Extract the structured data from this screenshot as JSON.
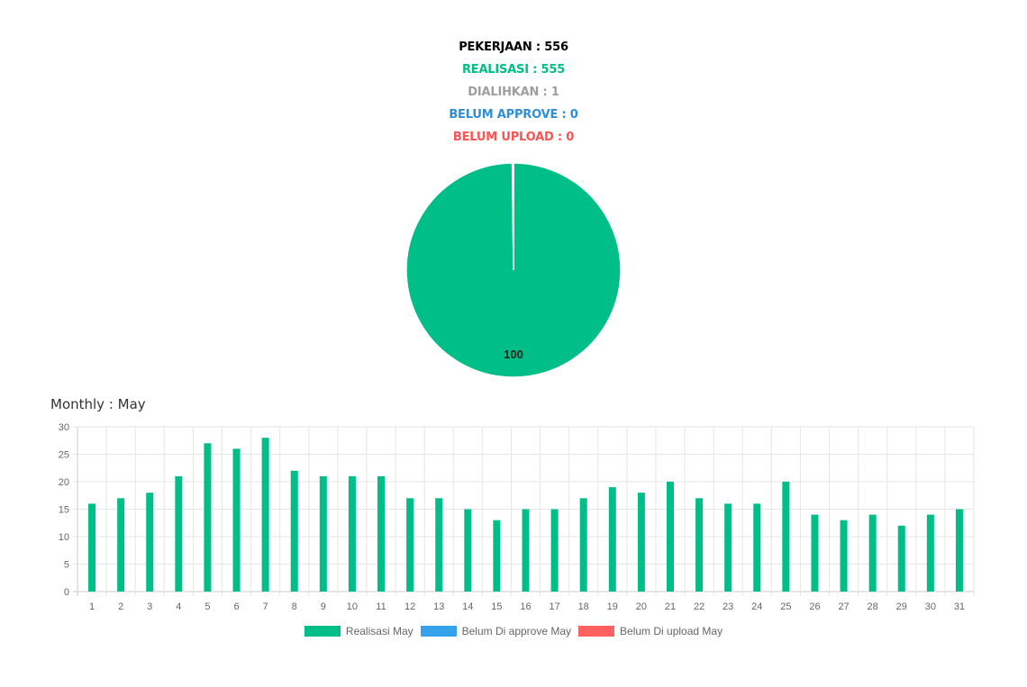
{
  "stats": [
    {
      "text": "PEKERJAAN : 556",
      "color": "#000000"
    },
    {
      "text": "REALISASI : 555",
      "color": "#00BE87"
    },
    {
      "text": "DIALIHKAN : 1",
      "color": "#9E9E9E"
    },
    {
      "text": "BELUM APPROVE : 0",
      "color": "#2E8FD6"
    },
    {
      "text": "BELUM UPLOAD : 0",
      "color": "#FF5252"
    }
  ],
  "monthly_title": "Monthly : May",
  "colors": {
    "realisasi": "#00BE87",
    "approve": "#36A2EB",
    "upload": "#FF6161",
    "grid": "#e6e6e6",
    "divider": "#ffffff"
  },
  "chart_data": [
    {
      "type": "pie",
      "slices": [
        {
          "name": "Realisasi",
          "value": 555
        },
        {
          "name": "Dialihkan",
          "value": 1
        }
      ],
      "data_label": "100"
    },
    {
      "type": "bar",
      "categories": [
        "1",
        "2",
        "3",
        "4",
        "5",
        "6",
        "7",
        "8",
        "9",
        "10",
        "11",
        "12",
        "13",
        "14",
        "15",
        "16",
        "17",
        "18",
        "19",
        "20",
        "21",
        "22",
        "23",
        "24",
        "25",
        "26",
        "27",
        "28",
        "29",
        "30",
        "31"
      ],
      "series": [
        {
          "name": "Realisasi May",
          "values": [
            16,
            17,
            18,
            21,
            27,
            26,
            28,
            22,
            21,
            21,
            21,
            17,
            17,
            15,
            13,
            15,
            15,
            17,
            19,
            18,
            20,
            17,
            16,
            16,
            20,
            14,
            13,
            14,
            12,
            14,
            15
          ]
        },
        {
          "name": "Belum Di approve May",
          "values": [
            0,
            0,
            0,
            0,
            0,
            0,
            0,
            0,
            0,
            0,
            0,
            0,
            0,
            0,
            0,
            0,
            0,
            0,
            0,
            0,
            0,
            0,
            0,
            0,
            0,
            0,
            0,
            0,
            0,
            0,
            0
          ]
        },
        {
          "name": "Belum Di upload May",
          "values": [
            0,
            0,
            0,
            0,
            0,
            0,
            0,
            0,
            0,
            0,
            0,
            0,
            0,
            0,
            0,
            0,
            0,
            0,
            0,
            0,
            0,
            0,
            0,
            0,
            0,
            0,
            0,
            0,
            0,
            0,
            0
          ]
        }
      ],
      "yticks": [
        "0",
        "5",
        "10",
        "15",
        "20",
        "25",
        "30"
      ],
      "ylim": [
        0,
        30
      ],
      "grid": true,
      "legend_position": "bottom"
    }
  ]
}
